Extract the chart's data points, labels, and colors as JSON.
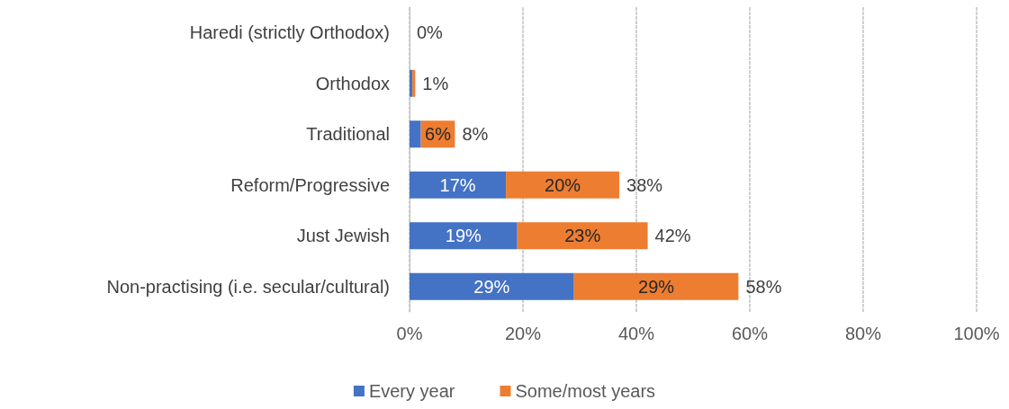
{
  "chart_data": {
    "type": "bar",
    "orientation": "horizontal",
    "stacked": true,
    "categories": [
      "Haredi (strictly Orthodox)",
      "Orthodox",
      "Traditional",
      "Reform/Progressive",
      "Just Jewish",
      "Non-practising (i.e. secular/cultural)"
    ],
    "series": [
      {
        "name": "Every year",
        "color": "#4472c4",
        "values": [
          0,
          0.5,
          2,
          17,
          19,
          29
        ],
        "value_labels": [
          null,
          null,
          null,
          "17%",
          "19%",
          "29%"
        ]
      },
      {
        "name": "Some/most years",
        "color": "#ed7d31",
        "values": [
          0,
          0.5,
          6,
          20,
          23,
          29
        ],
        "value_labels": [
          null,
          null,
          "6%",
          "20%",
          "23%",
          "29%"
        ]
      }
    ],
    "totals": [
      "0%",
      "1%",
      "8%",
      "38%",
      "42%",
      "58%"
    ],
    "xlim": [
      0,
      100
    ],
    "xticks": [
      {
        "value": 0,
        "label": "0%"
      },
      {
        "value": 20,
        "label": "20%"
      },
      {
        "value": 40,
        "label": "40%"
      },
      {
        "value": 60,
        "label": "60%"
      },
      {
        "value": 80,
        "label": "80%"
      },
      {
        "value": 100,
        "label": "100%"
      }
    ],
    "grid": "x",
    "legend": "bottom"
  }
}
